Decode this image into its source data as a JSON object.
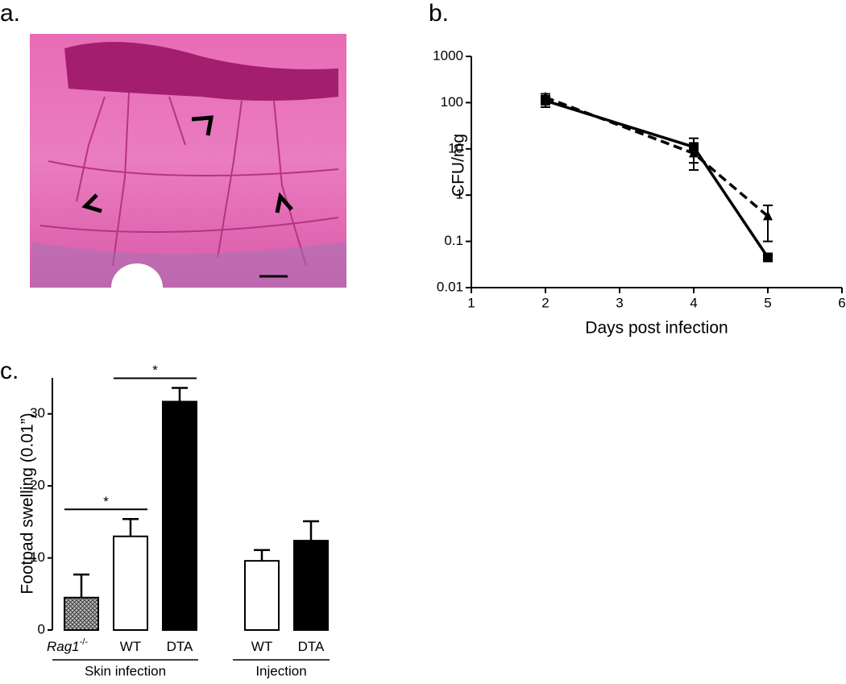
{
  "chart_data": [
    {
      "type": "image",
      "panel": "a."
    },
    {
      "type": "line",
      "panel": "b.",
      "y_label": "CFU/mg",
      "x_label": "Days post infection",
      "log_y": true,
      "ylim": [
        0.01,
        1000
      ],
      "yticks": [
        0.01,
        0.1,
        1,
        10,
        100,
        1000
      ],
      "xlim": [
        1,
        6
      ],
      "xticks": [
        1,
        2,
        3,
        4,
        5,
        6
      ],
      "x": [
        2,
        4,
        5
      ],
      "series": [
        {
          "color": "#000000",
          "line_style": "solid",
          "marker": "square",
          "values": [
            110,
            11,
            0.045
          ],
          "errors": [
            30,
            6,
            null
          ]
        },
        {
          "color": "#000000",
          "line_style": "dashed",
          "marker": "triangle",
          "values": [
            130,
            8,
            0.35
          ],
          "errors": [
            25,
            4.5,
            0.25
          ]
        }
      ]
    },
    {
      "type": "bar",
      "panel": "c.",
      "y_label": "Footpad swelling (0.01”)",
      "ylim": [
        0,
        35
      ],
      "yticks": [
        0,
        10,
        20,
        30
      ],
      "categories": [
        "Rag1",
        "WT",
        "DTA",
        "WT",
        "DTA"
      ],
      "category_superscripts": [
        "-/-",
        null,
        null,
        null,
        null
      ],
      "italic_categories": [
        true,
        false,
        false,
        false,
        false
      ],
      "values": [
        4.5,
        13,
        31.7,
        9.6,
        12.4
      ],
      "errors": [
        3.2,
        2.4,
        1.9,
        1.5,
        2.7
      ],
      "fills": [
        "hatch",
        "#ffffff",
        "#000000",
        "#ffffff",
        "#000000"
      ],
      "groups": [
        {
          "label": "Skin infection",
          "categories": [
            0,
            2
          ]
        },
        {
          "label": "Injection",
          "categories": [
            3,
            4
          ]
        }
      ],
      "significance": [
        {
          "label": "*",
          "from": 0,
          "to": 1
        },
        {
          "label": "*",
          "from": 1,
          "to": 2
        }
      ]
    }
  ]
}
